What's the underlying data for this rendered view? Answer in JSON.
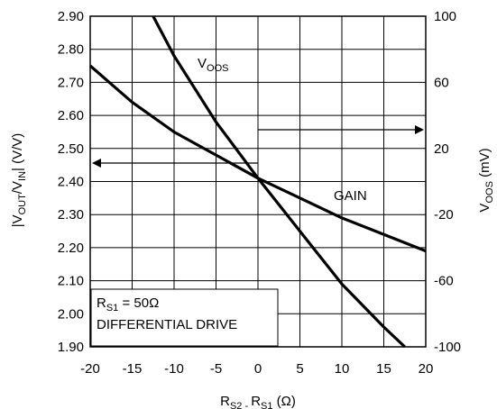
{
  "chart_data": {
    "type": "line",
    "x": [
      -20,
      -15,
      -10,
      -5,
      0,
      5,
      10,
      15,
      20
    ],
    "xlim": [
      -20,
      20
    ],
    "xticks": [
      "-20",
      "-15",
      "-10",
      "-5",
      "0",
      "5",
      "10",
      "15",
      "20"
    ],
    "ylim_left": [
      1.9,
      2.9
    ],
    "yticks_left": [
      "1.90",
      "2.00",
      "2.10",
      "2.20",
      "2.30",
      "2.40",
      "2.50",
      "2.60",
      "2.70",
      "2.80",
      "2.90"
    ],
    "ylim_right": [
      -100,
      100
    ],
    "yticks_right": [
      "-100",
      "-60",
      "-20",
      "20",
      "60",
      "100"
    ],
    "xlabel": {
      "main": "R",
      "sub1": "S2 - ",
      "main2": "R",
      "sub2": "S1",
      "unit": " (Ω)"
    },
    "ylabel_left": {
      "p1": "|V",
      "s1": "OUT",
      "p2": "/V",
      "s2": "IN",
      "p3": "| (V/V)"
    },
    "ylabel_right": {
      "p1": "V",
      "s1": "OOS",
      "p2": " (mV)"
    },
    "grid": true,
    "series": [
      {
        "name": "GAIN",
        "axis": "left",
        "x": [
          -20,
          -15,
          -10,
          -5,
          0,
          5,
          10,
          15,
          20
        ],
        "values": [
          2.75,
          2.64,
          2.55,
          2.48,
          2.41,
          2.35,
          2.29,
          2.24,
          2.19
        ]
      },
      {
        "name": "VOOS",
        "axis": "right",
        "x": [
          -12.5,
          -10,
          -5,
          0,
          5,
          10,
          15,
          17.5
        ],
        "values": [
          100,
          76,
          36,
          2,
          -30,
          -62,
          -88,
          -100
        ]
      }
    ],
    "annotations": {
      "voos_label": {
        "main": "V",
        "sub": "OOS"
      },
      "gain_label": "GAIN",
      "rs1_main": "R",
      "rs1_sub": "S1",
      "rs1_rest": " = 50Ω",
      "drive": "DIFFERENTIAL DRIVE"
    }
  }
}
